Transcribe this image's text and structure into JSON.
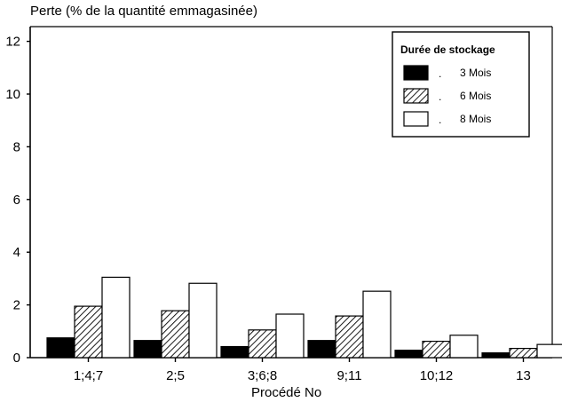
{
  "chart_data": {
    "type": "bar",
    "title": "",
    "ylabel": "Perte (% de la quantité emmagasinée)",
    "xlabel": "Procédé No",
    "categories": [
      "1;4;7",
      "2;5",
      "3;6;8",
      "9;11",
      "10;12",
      "13"
    ],
    "ylim": [
      0,
      12.5
    ],
    "yticks": [
      0,
      2,
      4,
      6,
      8,
      10,
      12
    ],
    "legend": {
      "title": "Durée de stockage",
      "placement": "top-right"
    },
    "series": [
      {
        "name": "3 Mois",
        "fill": "solid-black",
        "values": [
          0.75,
          0.65,
          0.42,
          0.65,
          0.28,
          0.18
        ]
      },
      {
        "name": "6 Mois",
        "fill": "hatched",
        "values": [
          1.95,
          1.78,
          1.05,
          1.58,
          0.62,
          0.35
        ]
      },
      {
        "name": "8 Mois",
        "fill": "white",
        "values": [
          3.05,
          2.82,
          1.65,
          2.52,
          0.85,
          0.5
        ]
      }
    ],
    "legend_markers": [
      ".",
      ".",
      "."
    ],
    "grid": false
  }
}
